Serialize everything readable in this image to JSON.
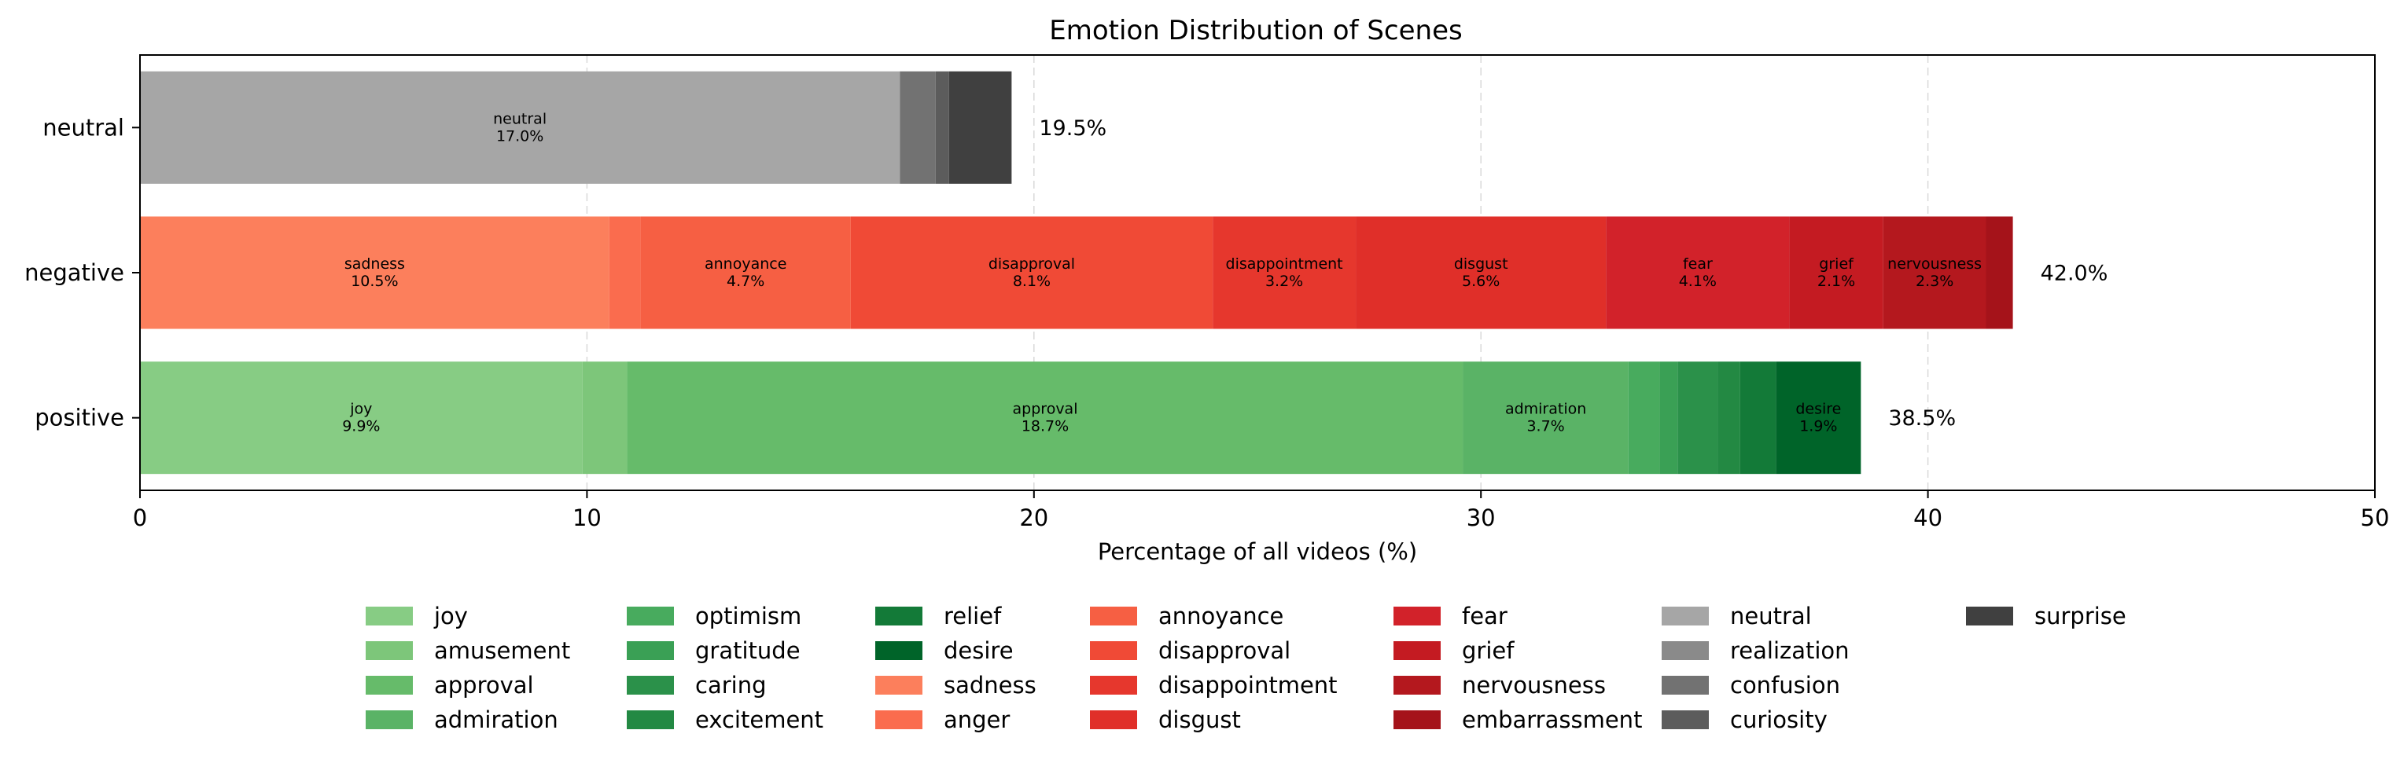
{
  "chart_data": {
    "type": "bar",
    "orientation": "horizontal",
    "stacked": true,
    "title": "Emotion Distribution of Scenes",
    "xlabel": "Percentage of all videos (%)",
    "ylabel": "",
    "xlim": [
      0,
      50
    ],
    "x_ticks": [
      "0",
      "10",
      "20",
      "30",
      "40",
      "50"
    ],
    "grid": "vertical dashed",
    "legend_position": "bottom-center",
    "categories": [
      "positive",
      "negative",
      "neutral"
    ],
    "totals": [
      "38.5%",
      "42.0%",
      "19.5%"
    ],
    "bars": [
      {
        "category": "positive",
        "segments": [
          {
            "name": "joy",
            "value": 9.9,
            "label": "9.9%"
          },
          {
            "name": "amusement",
            "value": 1.0
          },
          {
            "name": "approval",
            "value": 18.7,
            "label": "18.7%"
          },
          {
            "name": "admiration",
            "value": 3.7,
            "label": "3.7%"
          },
          {
            "name": "optimism",
            "value": 0.7
          },
          {
            "name": "gratitude",
            "value": 0.4
          },
          {
            "name": "caring",
            "value": 0.9
          },
          {
            "name": "excitement",
            "value": 0.5
          },
          {
            "name": "relief",
            "value": 0.8
          },
          {
            "name": "desire",
            "value": 1.9,
            "label": "1.9%"
          }
        ]
      },
      {
        "category": "negative",
        "segments": [
          {
            "name": "sadness",
            "value": 10.5,
            "label": "10.5%"
          },
          {
            "name": "anger",
            "value": 0.7
          },
          {
            "name": "annoyance",
            "value": 4.7,
            "label": "4.7%"
          },
          {
            "name": "disapproval",
            "value": 8.1,
            "label": "8.1%"
          },
          {
            "name": "disappointment",
            "value": 3.2,
            "label": "3.2%"
          },
          {
            "name": "disgust",
            "value": 5.6,
            "label": "5.6%"
          },
          {
            "name": "fear",
            "value": 4.1,
            "label": "4.1%"
          },
          {
            "name": "grief",
            "value": 2.1,
            "label": "2.1%"
          },
          {
            "name": "nervousness",
            "value": 2.3,
            "label": "2.3%"
          },
          {
            "name": "embarrassment",
            "value": 0.6
          }
        ]
      },
      {
        "category": "neutral",
        "segments": [
          {
            "name": "neutral",
            "value": 17.0,
            "label": "17.0%"
          },
          {
            "name": "realization",
            "value": 0.0
          },
          {
            "name": "confusion",
            "value": 0.8
          },
          {
            "name": "curiosity",
            "value": 0.3
          },
          {
            "name": "surprise",
            "value": 1.4
          }
        ]
      }
    ],
    "legend": [
      {
        "name": "joy",
        "color": "#87cc84"
      },
      {
        "name": "amusement",
        "color": "#7dc67a"
      },
      {
        "name": "approval",
        "color": "#66bb6a"
      },
      {
        "name": "admiration",
        "color": "#5ab366"
      },
      {
        "name": "optimism",
        "color": "#48ab5e"
      },
      {
        "name": "gratitude",
        "color": "#3aa055"
      },
      {
        "name": "caring",
        "color": "#2b914a"
      },
      {
        "name": "excitement",
        "color": "#238943"
      },
      {
        "name": "relief",
        "color": "#137a38"
      },
      {
        "name": "desire",
        "color": "#006429"
      },
      {
        "name": "sadness",
        "color": "#fc7f5c"
      },
      {
        "name": "anger",
        "color": "#fa6c4e"
      },
      {
        "name": "annoyance",
        "color": "#f65f43"
      },
      {
        "name": "disapproval",
        "color": "#f04a36"
      },
      {
        "name": "disappointment",
        "color": "#e6372d"
      },
      {
        "name": "disgust",
        "color": "#e02f29"
      },
      {
        "name": "fear",
        "color": "#d2222a"
      },
      {
        "name": "grief",
        "color": "#c41b22"
      },
      {
        "name": "nervousness",
        "color": "#b4181e"
      },
      {
        "name": "embarrassment",
        "color": "#a5131a"
      },
      {
        "name": "neutral",
        "color": "#a6a6a6"
      },
      {
        "name": "realization",
        "color": "#8a8a8a"
      },
      {
        "name": "confusion",
        "color": "#727272"
      },
      {
        "name": "curiosity",
        "color": "#5c5c5c"
      },
      {
        "name": "surprise",
        "color": "#404040"
      }
    ]
  }
}
